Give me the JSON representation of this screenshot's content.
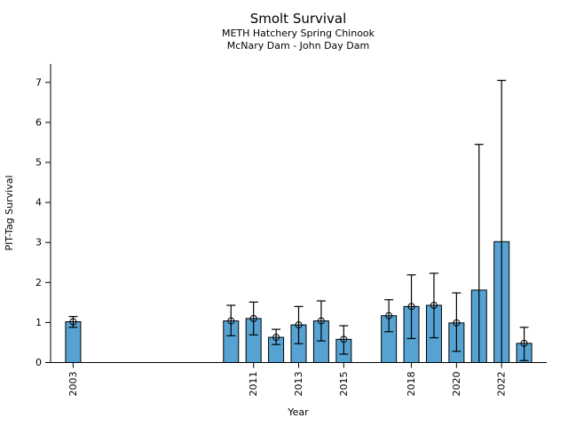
{
  "chart_data": {
    "type": "bar",
    "title": "Smolt Survival",
    "subtitle1": "METH Hatchery Spring Chinook",
    "subtitle2": "McNary Dam - John Day Dam",
    "xlabel": "Year",
    "ylabel": "PIT-Tag Survival",
    "xlim": [
      2002,
      2024
    ],
    "ylim": [
      0,
      7.45
    ],
    "yticks": [
      0,
      1,
      2,
      3,
      4,
      5,
      6,
      7
    ],
    "xticks_labeled": [
      2003,
      2011,
      2013,
      2015,
      2018,
      2020,
      2022
    ],
    "grid": false,
    "legend": false,
    "bar_color": "#56a3d3",
    "bar_edge_color": "#000000",
    "error_bar_color": "#000000",
    "marker_style": "open-circle",
    "series": [
      {
        "year": 2003,
        "value": 1.02,
        "err_low": 0.88,
        "err_high": 1.15,
        "marker": true
      },
      {
        "year": 2010,
        "value": 1.04,
        "err_low": 0.67,
        "err_high": 1.43,
        "marker": true
      },
      {
        "year": 2011,
        "value": 1.1,
        "err_low": 0.69,
        "err_high": 1.51,
        "marker": true
      },
      {
        "year": 2012,
        "value": 0.63,
        "err_low": 0.45,
        "err_high": 0.83,
        "marker": true
      },
      {
        "year": 2013,
        "value": 0.94,
        "err_low": 0.47,
        "err_high": 1.4,
        "marker": true
      },
      {
        "year": 2014,
        "value": 1.04,
        "err_low": 0.54,
        "err_high": 1.54,
        "marker": true
      },
      {
        "year": 2015,
        "value": 0.58,
        "err_low": 0.21,
        "err_high": 0.92,
        "marker": true
      },
      {
        "year": 2017,
        "value": 1.17,
        "err_low": 0.77,
        "err_high": 1.57,
        "marker": true
      },
      {
        "year": 2018,
        "value": 1.4,
        "err_low": 0.6,
        "err_high": 2.19,
        "marker": true
      },
      {
        "year": 2019,
        "value": 1.43,
        "err_low": 0.62,
        "err_high": 2.23,
        "marker": true
      },
      {
        "year": 2020,
        "value": 0.99,
        "err_low": 0.28,
        "err_high": 1.74,
        "marker": true
      },
      {
        "year": 2021,
        "value": 1.81,
        "err_low": 0.0,
        "err_high": 5.45,
        "marker": false
      },
      {
        "year": 2022,
        "value": 3.02,
        "err_low": 0.0,
        "err_high": 7.05,
        "marker": false
      },
      {
        "year": 2023,
        "value": 0.48,
        "err_low": 0.05,
        "err_high": 0.88,
        "marker": true
      }
    ]
  }
}
